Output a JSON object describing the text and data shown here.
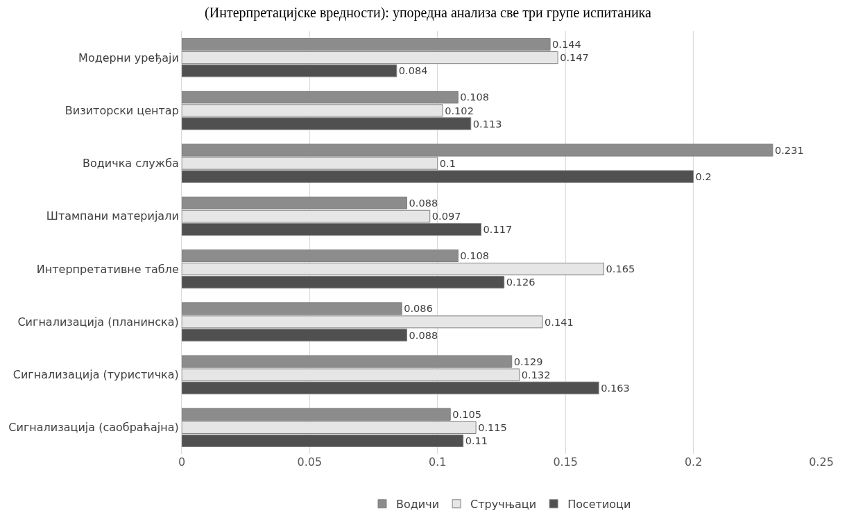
{
  "chart_data": {
    "type": "bar",
    "orientation": "horizontal",
    "title": "(Интерпретацијске вредности): упоредна анализа све три групе испитаника",
    "categories": [
      "Модерни уређаји",
      "Визиторски центар",
      "Водичка служба",
      "Штампани материјали",
      "Интерпретативне табле",
      "Сигнализација (планинска)",
      "Сигнализација (туристичка)",
      "Сигнализација (саобраћајна)"
    ],
    "series": [
      {
        "name": "Водичи",
        "color": "#8c8c8c",
        "values": [
          0.144,
          0.108,
          0.231,
          0.088,
          0.108,
          0.086,
          0.129,
          0.105
        ]
      },
      {
        "name": "Стручњаци",
        "color": "#e6e6e6",
        "values": [
          0.147,
          0.102,
          0.1,
          0.097,
          0.165,
          0.141,
          0.132,
          0.115
        ]
      },
      {
        "name": "Посетиоци",
        "color": "#505050",
        "values": [
          0.084,
          0.113,
          0.2,
          0.117,
          0.126,
          0.088,
          0.163,
          0.11
        ]
      }
    ],
    "xlim": [
      0,
      0.25
    ],
    "xticks": [
      0,
      0.05,
      0.1,
      0.15,
      0.2,
      0.25
    ],
    "grid": "x",
    "legend": "bottom",
    "data_labels": true
  }
}
